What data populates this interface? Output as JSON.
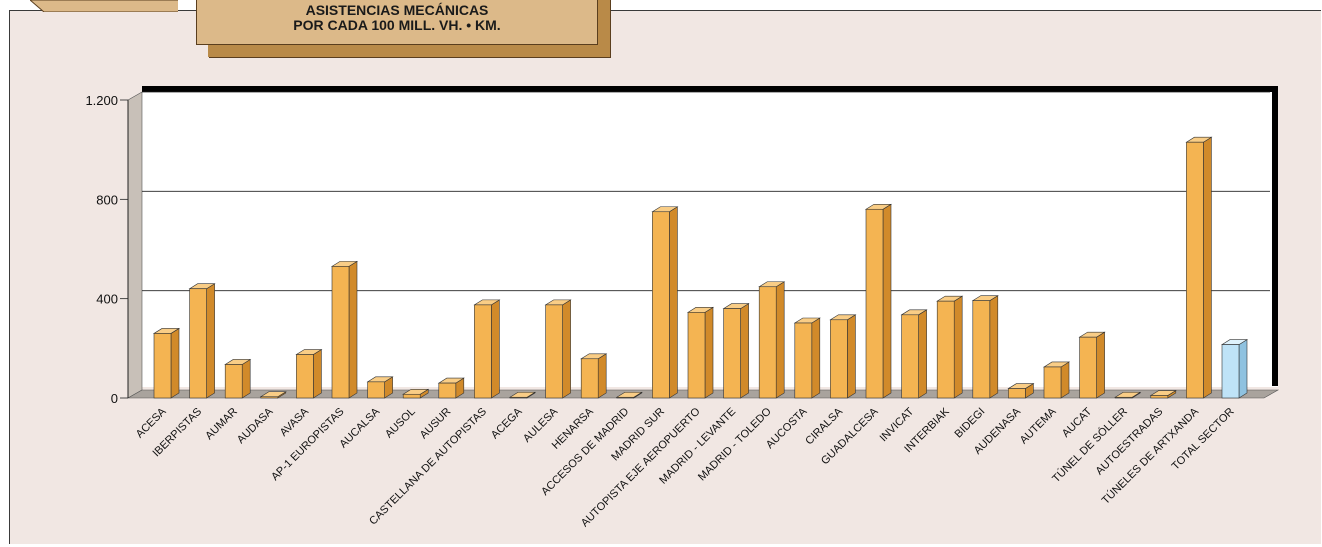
{
  "header": {
    "title_line1": "ASISTENCIAS MECÁNICAS",
    "title_line2": "POR CADA 100 MILL. VH. • KM."
  },
  "colors": {
    "bar_front": "#f4b452",
    "bar_side": "#d18a2a",
    "bar_top": "#f9cd86",
    "total_front": "#bfe3f7",
    "total_side": "#8fc2e0",
    "panel_bg": "#f1e7e3",
    "title_bg": "#dcb989"
  },
  "chart_data": {
    "type": "bar",
    "title": "ASISTENCIAS MECÁNICAS POR CADA 100 MILL. VH. • KM.",
    "xlabel": "",
    "ylabel": "",
    "ylim": [
      0,
      1200
    ],
    "yticks": [
      0,
      400,
      800,
      1200
    ],
    "ytick_labels": [
      "0",
      "400",
      "800",
      "1.200"
    ],
    "grid": true,
    "categories": [
      "ACESA",
      "IBERPISTAS",
      "AUMAR",
      "AUDASA",
      "AVASA",
      "AP-1 EUROPISTAS",
      "AUCALSA",
      "AUSOL",
      "AUSUR",
      "CASTELLANA DE AUTOPISTAS",
      "ACEGA",
      "AULESA",
      "HENARSA",
      "ACCESOS DE MADRID",
      "MADRID SUR",
      "AUTOPISTA EJE AEROPUERTO",
      "MADRID - LEVANTE",
      "MADRID - TOLEDO",
      "AUCOSTA",
      "CIRALSA",
      "GUADALCESA",
      "INVICAT",
      "INTERBIAK",
      "BIDEGI",
      "AUDENASA",
      "AUTEMA",
      "AUCAT",
      "TÚNEL DE SÓLLER",
      "AUTOESTRADAS",
      "TÚNELES DE ARTXANDA",
      "TOTAL SECTOR"
    ],
    "values": [
      260,
      440,
      135,
      5,
      175,
      530,
      65,
      15,
      60,
      375,
      3,
      375,
      158,
      3,
      750,
      345,
      360,
      448,
      302,
      315,
      760,
      335,
      390,
      392,
      38,
      125,
      245,
      3,
      10,
      1030,
      215
    ],
    "highlight_index": 30
  }
}
